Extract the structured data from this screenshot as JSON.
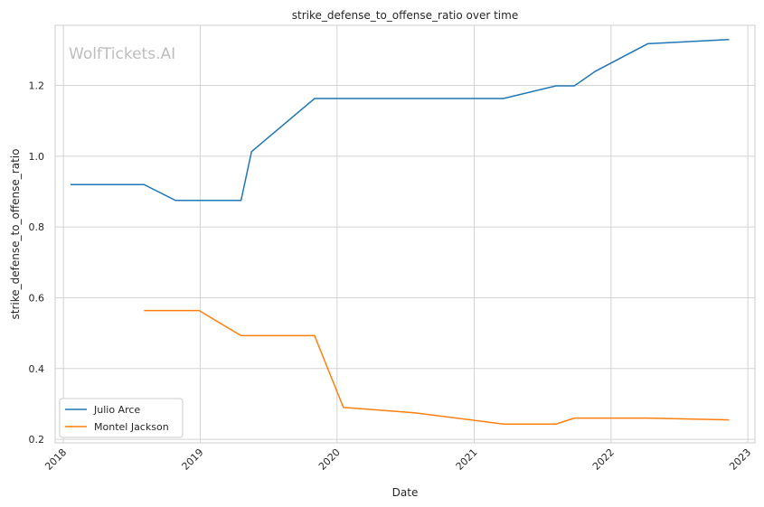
{
  "watermark": "WolfTickets.AI",
  "chart_data": {
    "type": "line",
    "title": "strike_defense_to_offense_ratio over time",
    "xlabel": "Date",
    "ylabel": "strike_defense_to_offense_ratio",
    "x_ticks": [
      "2018",
      "2019",
      "2020",
      "2021",
      "2022",
      "2023"
    ],
    "y_ticks": [
      "0.2",
      "0.4",
      "0.6",
      "0.8",
      "1.0",
      "1.2"
    ],
    "xlim": [
      "2017-12-10",
      "2023-01-20"
    ],
    "ylim": [
      0.19,
      1.37
    ],
    "grid": true,
    "legend_position": "lower-left",
    "series": [
      {
        "name": "Julio Arce",
        "color": "#1f77b4",
        "points": [
          {
            "x": "2018-01-20",
            "y": 0.92
          },
          {
            "x": "2018-08-04",
            "y": 0.92
          },
          {
            "x": "2018-10-27",
            "y": 0.875
          },
          {
            "x": "2019-04-20",
            "y": 0.875
          },
          {
            "x": "2019-05-18",
            "y": 1.013
          },
          {
            "x": "2019-11-02",
            "y": 1.163
          },
          {
            "x": "2021-03-20",
            "y": 1.163
          },
          {
            "x": "2021-08-07",
            "y": 1.199
          },
          {
            "x": "2021-09-25",
            "y": 1.199
          },
          {
            "x": "2021-11-20",
            "y": 1.24
          },
          {
            "x": "2022-04-09",
            "y": 1.318
          },
          {
            "x": "2022-11-12",
            "y": 1.33
          }
        ]
      },
      {
        "name": "Montel Jackson",
        "color": "#ff7f0e",
        "points": [
          {
            "x": "2018-08-04",
            "y": 0.564
          },
          {
            "x": "2018-12-29",
            "y": 0.564
          },
          {
            "x": "2019-04-20",
            "y": 0.493
          },
          {
            "x": "2019-11-02",
            "y": 0.493
          },
          {
            "x": "2020-01-18",
            "y": 0.29
          },
          {
            "x": "2020-07-25",
            "y": 0.275
          },
          {
            "x": "2021-03-20",
            "y": 0.243
          },
          {
            "x": "2021-08-07",
            "y": 0.243
          },
          {
            "x": "2021-09-25",
            "y": 0.26
          },
          {
            "x": "2022-04-09",
            "y": 0.26
          },
          {
            "x": "2022-11-12",
            "y": 0.255
          }
        ]
      }
    ]
  }
}
